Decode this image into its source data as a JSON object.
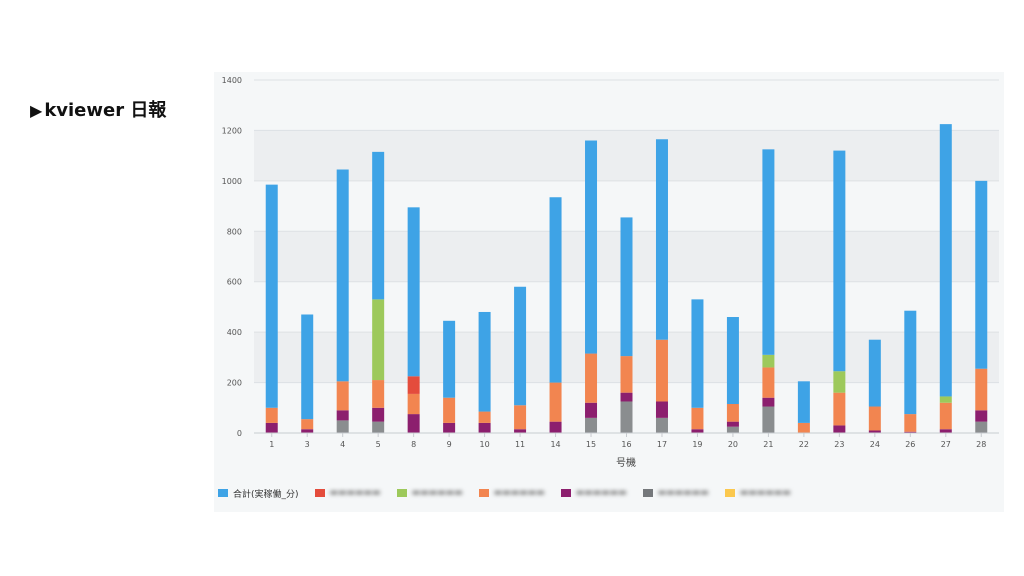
{
  "slide": {
    "marker": "▶",
    "title": "kviewer 日報"
  },
  "chart_data": {
    "type": "bar",
    "stacked": true,
    "xlabel": "号機",
    "ylabel": "",
    "ylim": [
      0,
      1400
    ],
    "yticks": [
      0,
      200,
      400,
      600,
      800,
      1000,
      1200,
      1400
    ],
    "grid": true,
    "legend_position": "bottom-left",
    "categories": [
      "1",
      "3",
      "4",
      "5",
      "8",
      "9",
      "10",
      "11",
      "14",
      "15",
      "16",
      "17",
      "19",
      "20",
      "21",
      "22",
      "23",
      "24",
      "26",
      "27",
      "28"
    ],
    "series": [
      {
        "name": "",
        "color": "#8a8d8f",
        "values": [
          0,
          0,
          50,
          45,
          0,
          0,
          0,
          0,
          0,
          60,
          125,
          60,
          0,
          25,
          105,
          0,
          0,
          0,
          0,
          0,
          45
        ]
      },
      {
        "name": "",
        "color": "#8c1f6e",
        "values": [
          40,
          15,
          40,
          55,
          75,
          40,
          40,
          15,
          45,
          60,
          35,
          65,
          15,
          20,
          35,
          0,
          30,
          10,
          5,
          15,
          45
        ]
      },
      {
        "name": "",
        "color": "#f28550",
        "values": [
          60,
          40,
          115,
          110,
          80,
          100,
          45,
          95,
          155,
          195,
          145,
          245,
          85,
          70,
          120,
          40,
          130,
          95,
          70,
          105,
          165
        ]
      },
      {
        "name": "",
        "color": "#9dc95b",
        "values": [
          0,
          0,
          0,
          320,
          0,
          0,
          0,
          0,
          0,
          0,
          0,
          0,
          0,
          0,
          50,
          0,
          85,
          0,
          0,
          25,
          0
        ]
      },
      {
        "name": "",
        "color": "#e44c3c",
        "values": [
          0,
          0,
          0,
          0,
          70,
          0,
          0,
          0,
          0,
          0,
          0,
          0,
          0,
          0,
          0,
          0,
          0,
          0,
          0,
          0,
          0
        ]
      },
      {
        "name": "",
        "color": "#fbc84e",
        "values": [
          0,
          0,
          0,
          0,
          0,
          0,
          0,
          0,
          0,
          0,
          0,
          0,
          0,
          0,
          0,
          0,
          0,
          0,
          0,
          0,
          0
        ]
      },
      {
        "name": "合計(実稼働_分)",
        "color": "#3ea3e6",
        "values": [
          885,
          415,
          840,
          585,
          670,
          305,
          395,
          470,
          735,
          845,
          550,
          795,
          430,
          345,
          815,
          165,
          875,
          265,
          410,
          1080,
          745
        ]
      }
    ],
    "legend": [
      {
        "label": "合計(実稼働_分)",
        "color": "#3ea3e6",
        "legible": true
      },
      {
        "label": "",
        "color": "#e44c3c",
        "legible": false
      },
      {
        "label": "",
        "color": "#9dc95b",
        "legible": false
      },
      {
        "label": "",
        "color": "#f28550",
        "legible": false
      },
      {
        "label": "",
        "color": "#8c1f6e",
        "legible": false
      },
      {
        "label": "",
        "color": "#75787b",
        "legible": false
      },
      {
        "label": "",
        "color": "#fbc84e",
        "legible": false
      }
    ]
  }
}
